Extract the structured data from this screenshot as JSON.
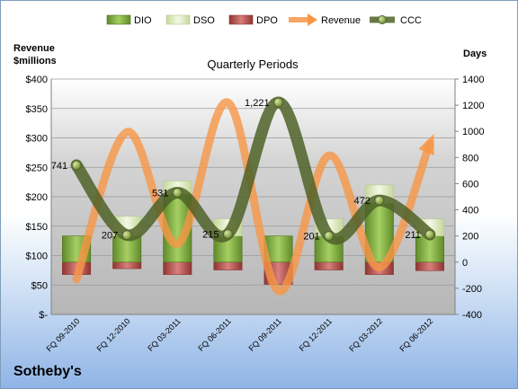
{
  "company": "Sotheby's",
  "chart_data": {
    "type": "bar",
    "title": "Quarterly Periods",
    "left_axis_label": [
      "Revenue",
      "$millions"
    ],
    "right_axis_label": "Days",
    "categories": [
      "FQ 09-2010",
      "FQ 12-2010",
      "FQ 03-2011",
      "FQ 06-2011",
      "FQ 09-2011",
      "FQ 12-2011",
      "FQ 03-2012",
      "FQ 06-2012"
    ],
    "left_axis": {
      "min": 0,
      "max": 400,
      "step": 50,
      "tick_labels": [
        "$-",
        "$50",
        "$100",
        "$150",
        "$200",
        "$250",
        "$300",
        "$350",
        "$400"
      ]
    },
    "right_axis": {
      "min": -400,
      "max": 1400,
      "step": 200,
      "tick_labels": [
        "-400",
        "-200",
        "0",
        "200",
        "400",
        "600",
        "800",
        "1000",
        "1200",
        "1400"
      ]
    },
    "legend_position": "top",
    "grid": true,
    "series": [
      {
        "name": "DIO",
        "kind": "bar",
        "axis": "right",
        "color": "#77a33a",
        "values": [
          200,
          200,
          520,
          200,
          200,
          200,
          450,
          200
        ]
      },
      {
        "name": "DSO",
        "kind": "bar",
        "axis": "right",
        "color": "#dfeac4",
        "values": [
          0,
          150,
          100,
          130,
          0,
          130,
          140,
          130
        ]
      },
      {
        "name": "DPO",
        "kind": "bar",
        "axis": "right",
        "color": "#c0504d",
        "values": [
          -95,
          -50,
          -95,
          -60,
          -170,
          -60,
          -95,
          -65
        ]
      },
      {
        "name": "Revenue",
        "kind": "line",
        "axis": "left",
        "color": "#f79646",
        "values": [
          60,
          310,
          120,
          360,
          40,
          270,
          80,
          290
        ]
      },
      {
        "name": "CCC",
        "kind": "line",
        "axis": "right",
        "color": "#4f6228",
        "values": [
          741,
          207,
          531,
          215,
          1221,
          201,
          472,
          211
        ]
      }
    ],
    "data_labels": [
      "741",
      "207",
      "531",
      "215",
      "1,221",
      "201",
      "472",
      "211"
    ]
  }
}
